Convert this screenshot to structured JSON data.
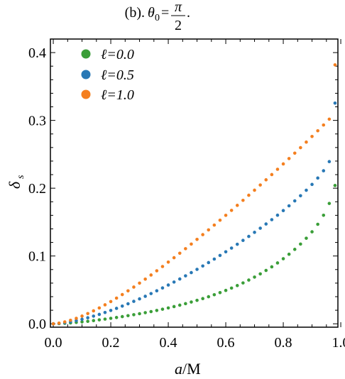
{
  "chart_data": {
    "type": "scatter",
    "title": {
      "prefix": "(b).",
      "symbol": "θ",
      "subscript": "0",
      "equals": "=",
      "numerator": "π",
      "denominator": "2",
      "suffix": "."
    },
    "xlabel": {
      "italic": "a",
      "rest": "/M"
    },
    "ylabel": {
      "main": "δ",
      "sub": "s"
    },
    "xlim": [
      -0.01,
      0.99
    ],
    "ylim": [
      -0.005,
      0.42
    ],
    "xticks": [
      0.0,
      0.2,
      0.4,
      0.6,
      0.8,
      1.0
    ],
    "xtick_labels": [
      "0.0",
      "0.2",
      "0.4",
      "0.6",
      "0.8",
      "1.0"
    ],
    "yticks": [
      0.0,
      0.1,
      0.2,
      0.3,
      0.4
    ],
    "ytick_labels": [
      "0.0",
      "0.1",
      "0.2",
      "0.3",
      "0.4"
    ],
    "grid": false,
    "legend_position": "top-left",
    "series": [
      {
        "name": "ℓ=0.0",
        "color": "#3a9e38",
        "x": [
          0.0,
          0.02,
          0.04,
          0.06,
          0.08,
          0.1,
          0.12,
          0.14,
          0.16,
          0.18,
          0.2,
          0.22,
          0.24,
          0.26,
          0.28,
          0.3,
          0.32,
          0.34,
          0.36,
          0.38,
          0.4,
          0.42,
          0.44,
          0.46,
          0.48,
          0.5,
          0.52,
          0.54,
          0.56,
          0.58,
          0.6,
          0.62,
          0.64,
          0.66,
          0.68,
          0.7,
          0.72,
          0.74,
          0.76,
          0.78,
          0.8,
          0.82,
          0.84,
          0.86,
          0.88,
          0.9,
          0.92,
          0.94,
          0.96,
          0.98
        ],
        "y": [
          0.0,
          0.0003,
          0.0007,
          0.0013,
          0.002,
          0.0028,
          0.0037,
          0.0047,
          0.0058,
          0.0069,
          0.0081,
          0.0093,
          0.0106,
          0.012,
          0.0134,
          0.0149,
          0.0164,
          0.018,
          0.0197,
          0.0215,
          0.0234,
          0.0254,
          0.0275,
          0.0297,
          0.0321,
          0.0346,
          0.0372,
          0.0399,
          0.0429,
          0.046,
          0.0492,
          0.0527,
          0.0564,
          0.0603,
          0.0645,
          0.0689,
          0.0736,
          0.0787,
          0.084,
          0.0898,
          0.096,
          0.1026,
          0.1098,
          0.1176,
          0.1262,
          0.1357,
          0.1468,
          0.1601,
          0.1775,
          0.204
        ]
      },
      {
        "name": "ℓ=0.5",
        "color": "#2878b5",
        "x": [
          0.0,
          0.02,
          0.04,
          0.06,
          0.08,
          0.1,
          0.12,
          0.14,
          0.16,
          0.18,
          0.2,
          0.22,
          0.24,
          0.26,
          0.28,
          0.3,
          0.32,
          0.34,
          0.36,
          0.38,
          0.4,
          0.42,
          0.44,
          0.46,
          0.48,
          0.5,
          0.52,
          0.54,
          0.56,
          0.58,
          0.6,
          0.62,
          0.64,
          0.66,
          0.68,
          0.7,
          0.72,
          0.74,
          0.76,
          0.78,
          0.8,
          0.82,
          0.84,
          0.86,
          0.88,
          0.9,
          0.92,
          0.94,
          0.96,
          0.98
        ],
        "y": [
          0.0,
          0.0006,
          0.0016,
          0.003,
          0.0047,
          0.0067,
          0.0089,
          0.0113,
          0.0139,
          0.0167,
          0.0197,
          0.0228,
          0.0261,
          0.0295,
          0.0331,
          0.0368,
          0.0406,
          0.0446,
          0.0487,
          0.0529,
          0.0572,
          0.0616,
          0.0661,
          0.0707,
          0.0755,
          0.0803,
          0.0853,
          0.0903,
          0.0955,
          0.1008,
          0.1062,
          0.1117,
          0.1173,
          0.123,
          0.1289,
          0.1349,
          0.141,
          0.1472,
          0.1536,
          0.1602,
          0.167,
          0.174,
          0.1813,
          0.1889,
          0.197,
          0.2056,
          0.215,
          0.2257,
          0.2392,
          0.3255
        ]
      },
      {
        "name": "ℓ=1.0",
        "color": "#f47f1f",
        "x": [
          0.0,
          0.02,
          0.04,
          0.06,
          0.08,
          0.1,
          0.12,
          0.14,
          0.16,
          0.18,
          0.2,
          0.22,
          0.24,
          0.26,
          0.28,
          0.3,
          0.32,
          0.34,
          0.36,
          0.38,
          0.4,
          0.42,
          0.44,
          0.46,
          0.48,
          0.5,
          0.52,
          0.54,
          0.56,
          0.58,
          0.6,
          0.62,
          0.64,
          0.66,
          0.68,
          0.7,
          0.72,
          0.74,
          0.76,
          0.78,
          0.8,
          0.82,
          0.84,
          0.86,
          0.88,
          0.9,
          0.92,
          0.94,
          0.96,
          0.98
        ],
        "y": [
          0.0,
          0.001,
          0.0028,
          0.0052,
          0.0081,
          0.0114,
          0.0151,
          0.0191,
          0.0234,
          0.028,
          0.0328,
          0.0379,
          0.0431,
          0.0486,
          0.0542,
          0.06,
          0.0659,
          0.072,
          0.0782,
          0.0845,
          0.091,
          0.0975,
          0.1041,
          0.1108,
          0.1176,
          0.1245,
          0.1315,
          0.1385,
          0.1456,
          0.1528,
          0.16,
          0.1673,
          0.1747,
          0.1821,
          0.1896,
          0.1971,
          0.2047,
          0.2124,
          0.2201,
          0.2279,
          0.2358,
          0.2437,
          0.2517,
          0.2598,
          0.268,
          0.2763,
          0.2847,
          0.2932,
          0.3018,
          0.3819
        ]
      }
    ]
  }
}
